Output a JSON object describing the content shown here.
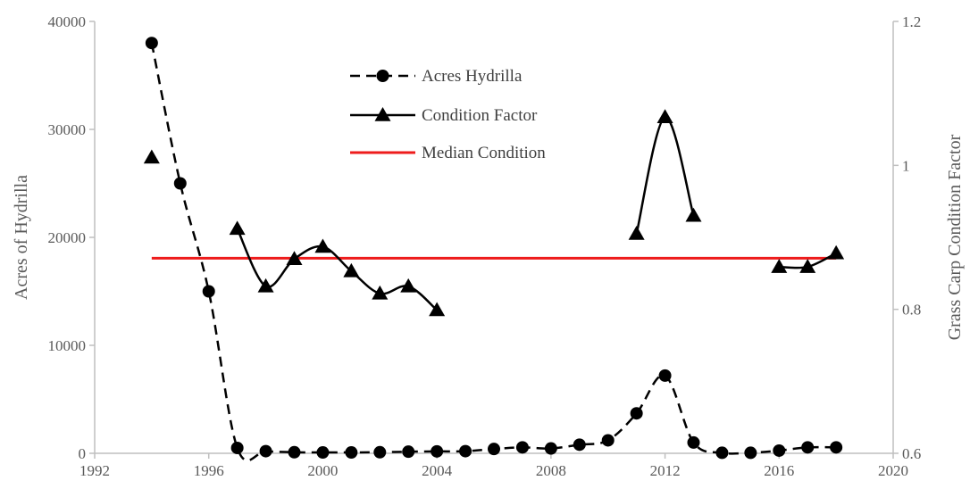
{
  "chart_data": {
    "type": "line",
    "xlabel": "",
    "ylabel": "Acres of Hydrilla",
    "y2label": "Grass Carp Condition Factor",
    "xlim": [
      1992,
      2020
    ],
    "ylim": [
      0,
      40000
    ],
    "y2lim": [
      0.6,
      1.2
    ],
    "x_ticks": [
      "1992",
      "1996",
      "2000",
      "2004",
      "2008",
      "2012",
      "2016",
      "2020"
    ],
    "y_ticks": [
      "0",
      "10000",
      "20000",
      "30000",
      "40000"
    ],
    "y2_ticks": [
      "0.6",
      "0.8",
      "1",
      "1.2"
    ],
    "grid": false,
    "legend_position": "top-center",
    "series": [
      {
        "name": "Acres Hydrilla",
        "axis": "left",
        "style": "dashed",
        "marker": "circle",
        "color": "#000000",
        "segments": [
          [
            [
              1994,
              38000
            ],
            [
              1995,
              25000
            ],
            [
              1996,
              15000
            ],
            [
              1997,
              500
            ],
            [
              1998,
              200
            ],
            [
              1999,
              100
            ],
            [
              2000,
              80
            ],
            [
              2001,
              80
            ],
            [
              2002,
              100
            ],
            [
              2003,
              150
            ],
            [
              2004,
              180
            ],
            [
              2005,
              200
            ],
            [
              2006,
              400
            ],
            [
              2007,
              550
            ],
            [
              2008,
              450
            ],
            [
              2009,
              800
            ],
            [
              2010,
              1200
            ],
            [
              2011,
              3700
            ],
            [
              2012,
              7200
            ],
            [
              2013,
              1000
            ],
            [
              2014,
              50
            ],
            [
              2015,
              50
            ],
            [
              2016,
              250
            ],
            [
              2017,
              550
            ],
            [
              2018,
              550
            ]
          ]
        ]
      },
      {
        "name": "Condition Factor",
        "axis": "right",
        "style": "solid",
        "marker": "triangle",
        "color": "#000000",
        "segments": [
          [
            [
              1994,
              1.011
            ]
          ],
          [
            [
              1997,
              0.912
            ],
            [
              1998,
              0.832
            ],
            [
              1999,
              0.87
            ],
            [
              2000,
              0.887
            ],
            [
              2001,
              0.853
            ],
            [
              2002,
              0.822
            ],
            [
              2003,
              0.832
            ],
            [
              2004,
              0.799
            ]
          ],
          [
            [
              2011,
              0.905
            ],
            [
              2012,
              1.067
            ],
            [
              2013,
              0.93
            ]
          ],
          [
            [
              2016,
              0.859
            ],
            [
              2017,
              0.859
            ],
            [
              2018,
              0.878
            ]
          ]
        ]
      },
      {
        "name": "Median Condition",
        "axis": "right",
        "style": "solid",
        "marker": "none",
        "color": "#ee1c1c",
        "segments": [
          [
            [
              1994,
              0.871
            ],
            [
              2018,
              0.871
            ]
          ]
        ]
      }
    ]
  }
}
